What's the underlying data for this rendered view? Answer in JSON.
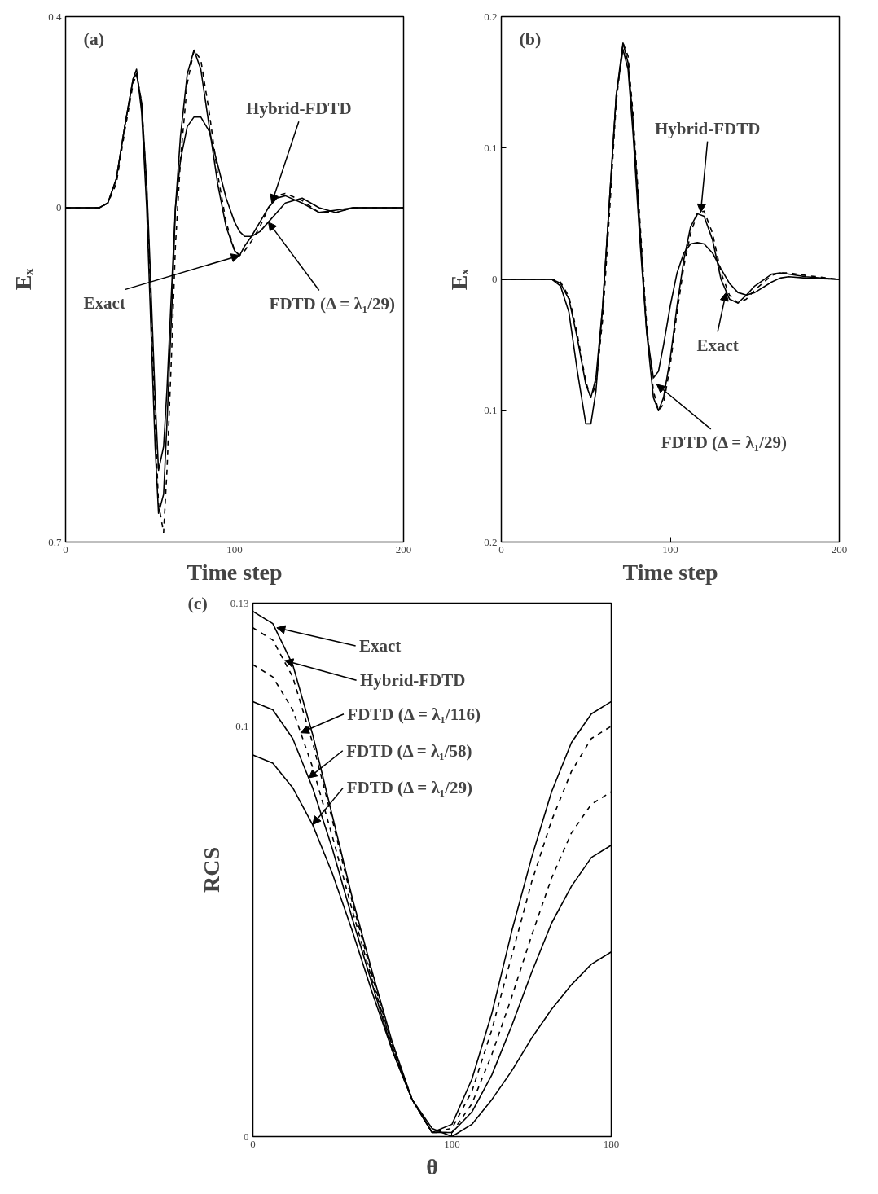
{
  "chart_data": [
    {
      "type": "line",
      "xlabel": "Time step",
      "ylabel": "Eₓ",
      "xlim": [
        0,
        200
      ],
      "ylim": [
        -0.7,
        0.4
      ],
      "xticks": [
        0,
        100,
        200
      ],
      "yticks": [
        -0.7,
        0,
        0.4
      ],
      "grid": false,
      "marker": "none",
      "x": [
        0,
        20,
        25,
        30,
        35,
        40,
        42,
        45,
        48,
        50,
        53,
        55,
        58,
        60,
        63,
        65,
        68,
        72,
        76,
        80,
        85,
        90,
        95,
        100,
        103,
        106,
        110,
        115,
        120,
        125,
        130,
        140,
        150,
        160,
        170,
        180,
        200
      ],
      "series": [
        {
          "color": "#000000",
          "line_style": "solid",
          "values": [
            0,
            0,
            0.01,
            0.06,
            0.17,
            0.27,
            0.29,
            0.2,
            0,
            -0.2,
            -0.5,
            -0.64,
            -0.6,
            -0.45,
            -0.2,
            0,
            0.15,
            0.28,
            0.33,
            0.29,
            0.17,
            0.05,
            -0.04,
            -0.09,
            -0.1,
            -0.08,
            -0.06,
            -0.03,
            0.0,
            0.02,
            0.025,
            0.01,
            -0.01,
            -0.005,
            0,
            0,
            0
          ]
        },
        {
          "color": "#000000",
          "line_style": "dashed",
          "values": [
            0,
            0,
            0.01,
            0.05,
            0.16,
            0.26,
            0.28,
            0.22,
            0.04,
            -0.15,
            -0.45,
            -0.62,
            -0.68,
            -0.55,
            -0.28,
            -0.08,
            0.1,
            0.26,
            0.33,
            0.31,
            0.2,
            0.07,
            -0.03,
            -0.09,
            -0.1,
            -0.09,
            -0.07,
            -0.04,
            0.0,
            0.025,
            0.03,
            0.015,
            -0.01,
            -0.01,
            0,
            0,
            0
          ]
        },
        {
          "color": "#000000",
          "line_style": "solid",
          "values": [
            0,
            0,
            0.01,
            0.06,
            0.17,
            0.27,
            0.28,
            0.22,
            0.05,
            -0.12,
            -0.4,
            -0.55,
            -0.5,
            -0.38,
            -0.15,
            0,
            0.1,
            0.17,
            0.19,
            0.19,
            0.16,
            0.09,
            0.02,
            -0.03,
            -0.05,
            -0.06,
            -0.06,
            -0.05,
            -0.03,
            -0.01,
            0.01,
            0.02,
            0.0,
            -0.01,
            0,
            0,
            0
          ]
        }
      ],
      "annotations": [
        "(a)",
        {
          "text": "Hybrid-FDTD",
          "x": 122,
          "y": 0.01
        },
        {
          "text": "Exact",
          "x": 103,
          "y": -0.1
        },
        {
          "text": "FDTD (Δ = λ₁/29)",
          "x": 120,
          "y": -0.03
        }
      ]
    },
    {
      "type": "line",
      "xlabel": "Time step",
      "ylabel": "Eₓ",
      "xlim": [
        0,
        200
      ],
      "ylim": [
        -0.2,
        0.2
      ],
      "xticks": [
        0,
        100,
        200
      ],
      "yticks": [
        -0.2,
        -0.1,
        0,
        0.1,
        0.2
      ],
      "grid": false,
      "marker": "none",
      "x": [
        0,
        30,
        35,
        40,
        45,
        50,
        53,
        56,
        60,
        64,
        68,
        72,
        75,
        78,
        82,
        86,
        90,
        93,
        96,
        100,
        104,
        108,
        112,
        116,
        120,
        125,
        130,
        135,
        140,
        145,
        150,
        160,
        165,
        170,
        180,
        200
      ],
      "series": [
        {
          "color": "#000000",
          "line_style": "solid",
          "values": [
            0,
            0,
            -0.003,
            -0.015,
            -0.045,
            -0.08,
            -0.09,
            -0.075,
            -0.02,
            0.06,
            0.14,
            0.18,
            0.165,
            0.12,
            0.04,
            -0.04,
            -0.09,
            -0.1,
            -0.09,
            -0.06,
            -0.02,
            0.015,
            0.04,
            0.05,
            0.048,
            0.03,
            0.0,
            -0.015,
            -0.018,
            -0.012,
            -0.005,
            0.004,
            0.005,
            0.004,
            0.002,
            0
          ]
        },
        {
          "color": "#000000",
          "line_style": "dashed",
          "values": [
            0,
            0,
            -0.002,
            -0.013,
            -0.042,
            -0.078,
            -0.09,
            -0.08,
            -0.03,
            0.05,
            0.135,
            0.18,
            0.17,
            0.125,
            0.045,
            -0.035,
            -0.085,
            -0.1,
            -0.095,
            -0.065,
            -0.025,
            0.01,
            0.035,
            0.05,
            0.052,
            0.035,
            0.005,
            -0.012,
            -0.018,
            -0.015,
            -0.008,
            0.003,
            0.005,
            0.005,
            0.003,
            0
          ]
        },
        {
          "color": "#000000",
          "line_style": "solid",
          "values": [
            0,
            0,
            -0.005,
            -0.025,
            -0.07,
            -0.11,
            -0.11,
            -0.085,
            -0.02,
            0.06,
            0.14,
            0.175,
            0.16,
            0.11,
            0.03,
            -0.04,
            -0.075,
            -0.07,
            -0.05,
            -0.02,
            0.005,
            0.02,
            0.027,
            0.028,
            0.027,
            0.02,
            0.008,
            -0.003,
            -0.01,
            -0.012,
            -0.01,
            -0.002,
            0.001,
            0.002,
            0.001,
            0
          ]
        }
      ],
      "annotations": [
        "(b)",
        {
          "text": "Hybrid-FDTD",
          "x": 118,
          "y": 0.051
        },
        {
          "text": "Exact",
          "x": 133,
          "y": -0.01
        },
        {
          "text": "FDTD (Δ = λ₁/29)",
          "x": 92,
          "y": -0.08
        }
      ]
    },
    {
      "type": "line",
      "xlabel": "θ",
      "ylabel": "RCS",
      "xlim": [
        0,
        180
      ],
      "ylim": [
        0,
        0.13
      ],
      "xticks": [
        0,
        100,
        180
      ],
      "yticks": [
        0,
        0.1,
        0.13
      ],
      "grid": false,
      "marker": "none",
      "x": [
        0,
        10,
        20,
        30,
        40,
        50,
        60,
        70,
        80,
        90,
        100,
        110,
        120,
        130,
        140,
        150,
        160,
        170,
        180
      ],
      "series": [
        {
          "color": "#000000",
          "line_style": "solid",
          "values": [
            0.128,
            0.125,
            0.115,
            0.098,
            0.078,
            0.058,
            0.04,
            0.023,
            0.009,
            0.001,
            0.003,
            0.014,
            0.03,
            0.05,
            0.068,
            0.084,
            0.096,
            0.103,
            0.106
          ]
        },
        {
          "color": "#000000",
          "line_style": "dashed",
          "values": [
            0.124,
            0.121,
            0.112,
            0.096,
            0.077,
            0.057,
            0.039,
            0.022,
            0.009,
            0.001,
            0.002,
            0.011,
            0.026,
            0.044,
            0.062,
            0.077,
            0.089,
            0.097,
            0.1
          ]
        },
        {
          "color": "#000000",
          "line_style": "dashed",
          "values": [
            0.115,
            0.112,
            0.104,
            0.09,
            0.073,
            0.055,
            0.038,
            0.022,
            0.009,
            0.001,
            0.001,
            0.008,
            0.02,
            0.034,
            0.049,
            0.063,
            0.074,
            0.081,
            0.084
          ]
        },
        {
          "color": "#000000",
          "line_style": "solid",
          "values": [
            0.106,
            0.104,
            0.097,
            0.085,
            0.07,
            0.053,
            0.037,
            0.021,
            0.009,
            0.001,
            0.001,
            0.006,
            0.015,
            0.027,
            0.04,
            0.052,
            0.061,
            0.068,
            0.071
          ]
        },
        {
          "color": "#000000",
          "line_style": "solid",
          "values": [
            0.093,
            0.091,
            0.085,
            0.076,
            0.064,
            0.05,
            0.035,
            0.021,
            0.009,
            0.002,
            0.0,
            0.003,
            0.009,
            0.016,
            0.024,
            0.031,
            0.037,
            0.042,
            0.045
          ]
        }
      ],
      "annotations": [
        "(c)",
        {
          "text": "Exact",
          "x": 12,
          "y": 0.124
        },
        {
          "text": "Hybrid-FDTD",
          "x": 16,
          "y": 0.116
        },
        {
          "text": "FDTD (Δ = λ₁/116)",
          "x": 24,
          "y": 0.0984
        },
        {
          "text": "FDTD (Δ = λ₁/58)",
          "x": 28,
          "y": 0.0874
        },
        {
          "text": "FDTD (Δ = λ₁/29)",
          "x": 30,
          "y": 0.076
        }
      ]
    }
  ]
}
